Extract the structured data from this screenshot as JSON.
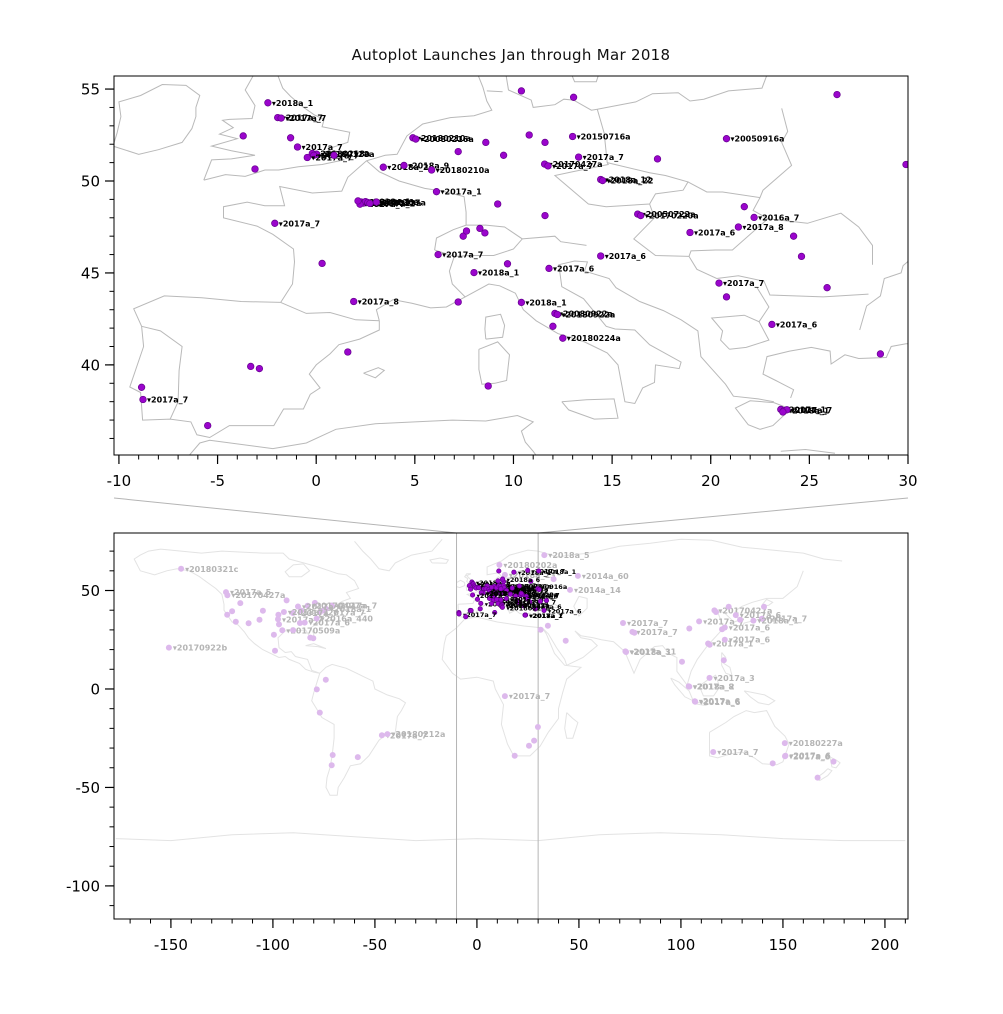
{
  "figure": {
    "title": "Autoplot Launches Jan through Mar 2018"
  },
  "colors": {
    "point_bright": "#9a05cc",
    "point_bright_edge": "#66008f",
    "point_faded": "#ddb9ec",
    "label_dark": "#000000",
    "label_gray": "#b5b5b5",
    "map_line_top": "#b9b9b9",
    "map_line_bottom": "#e3e3e3",
    "zoom_line": "#b4b4b4",
    "axis": "#000000"
  },
  "chart_data": [
    {
      "type": "scatter",
      "name": "europe-detail",
      "title": "Autoplot Launches Jan through Mar 2018",
      "xlim": [
        -10.25,
        30.0
      ],
      "ylim": [
        35.1,
        55.71
      ],
      "xticks": [
        -10,
        -5,
        0,
        5,
        10,
        15,
        20,
        25,
        30
      ],
      "yticks": [
        40,
        45,
        50,
        55
      ],
      "x_minor_step": 1,
      "y_minor_step": 1,
      "grid": false,
      "points": [
        [
          -2.45,
          54.25,
          "2018a_1"
        ],
        [
          -1.95,
          53.45,
          "2017a_7"
        ],
        [
          -1.78,
          53.42,
          "2017a_7"
        ],
        [
          -3.7,
          52.45,
          null
        ],
        [
          -1.3,
          52.35,
          null
        ],
        [
          -0.95,
          51.85,
          "2017a_7"
        ],
        [
          -0.2,
          51.5,
          "20180218a"
        ],
        [
          0.02,
          51.46,
          "20180128a"
        ],
        [
          -0.12,
          51.4,
          "2017a_7"
        ],
        [
          -0.45,
          51.28,
          "2017a_7"
        ],
        [
          0.9,
          51.4,
          null
        ],
        [
          -3.1,
          50.65,
          null
        ],
        [
          4.9,
          52.35,
          "20180210a"
        ],
        [
          5.05,
          52.28,
          "20080216a"
        ],
        [
          3.4,
          50.75,
          "2018a_2"
        ],
        [
          4.45,
          50.85,
          "2018a_9"
        ],
        [
          5.85,
          50.6,
          "20180210a"
        ],
        [
          6.1,
          49.42,
          "2017a_1"
        ],
        [
          8.6,
          52.1,
          null
        ],
        [
          7.2,
          51.6,
          null
        ],
        [
          9.5,
          51.4,
          null
        ],
        [
          10.8,
          52.5,
          null
        ],
        [
          11.6,
          52.1,
          null
        ],
        [
          13.0,
          52.42,
          "20150716a"
        ],
        [
          13.3,
          51.3,
          "2017a_7"
        ],
        [
          11.58,
          50.92,
          "20170427a"
        ],
        [
          11.75,
          50.82,
          "2017a_7"
        ],
        [
          14.42,
          50.08,
          "2018a_12"
        ],
        [
          14.52,
          50.02,
          "2018a_22"
        ],
        [
          17.3,
          51.2,
          null
        ],
        [
          20.8,
          52.3,
          "20050916a"
        ],
        [
          29.9,
          50.9,
          null
        ],
        [
          26.4,
          54.7,
          null
        ],
        [
          13.05,
          54.55,
          null
        ],
        [
          10.4,
          54.9,
          null
        ],
        [
          7.45,
          47.0,
          null
        ],
        [
          7.62,
          47.28,
          null
        ],
        [
          8.3,
          47.42,
          null
        ],
        [
          8.55,
          47.18,
          null
        ],
        [
          6.18,
          46.0,
          "2017a_7"
        ],
        [
          11.6,
          48.12,
          null
        ],
        [
          9.2,
          48.75,
          null
        ],
        [
          2.28,
          48.86,
          "20180126a"
        ],
        [
          2.4,
          48.8,
          "20180223a"
        ],
        [
          2.5,
          48.88,
          "2018a_1"
        ],
        [
          2.22,
          48.74,
          "2017a_7"
        ],
        [
          2.62,
          48.83,
          "20180117a"
        ],
        [
          2.72,
          48.78,
          "2017a_2"
        ],
        [
          3.05,
          48.86,
          null
        ],
        [
          2.12,
          48.92,
          null
        ],
        [
          -2.1,
          47.7,
          "2017a_7"
        ],
        [
          0.3,
          45.52,
          null
        ],
        [
          1.9,
          43.45,
          "2017a_8"
        ],
        [
          16.3,
          48.2,
          "20050722a"
        ],
        [
          16.45,
          48.12,
          "20170220a"
        ],
        [
          18.95,
          47.2,
          "2017a_6"
        ],
        [
          21.4,
          47.5,
          "2017a_8"
        ],
        [
          22.2,
          48.02,
          "2016a_7"
        ],
        [
          21.7,
          48.6,
          null
        ],
        [
          24.2,
          47.0,
          null
        ],
        [
          24.6,
          45.9,
          null
        ],
        [
          20.42,
          44.45,
          "2017a_7"
        ],
        [
          20.8,
          43.7,
          null
        ],
        [
          25.9,
          44.2,
          null
        ],
        [
          23.1,
          42.2,
          "2017a_6"
        ],
        [
          28.6,
          40.6,
          null
        ],
        [
          8.0,
          45.02,
          "2018a_1"
        ],
        [
          9.7,
          45.5,
          null
        ],
        [
          11.8,
          45.25,
          "2017a_6"
        ],
        [
          14.42,
          45.92,
          "2017a_6"
        ],
        [
          7.2,
          43.42,
          null
        ],
        [
          10.4,
          43.4,
          "2018a_1"
        ],
        [
          12.1,
          42.8,
          "20080922a"
        ],
        [
          12.22,
          42.74,
          "20180922a"
        ],
        [
          12.0,
          42.1,
          null
        ],
        [
          12.5,
          41.45,
          "20180224a"
        ],
        [
          8.72,
          38.85,
          null
        ],
        [
          -8.85,
          38.78,
          null
        ],
        [
          -8.78,
          38.12,
          "2017a_7"
        ],
        [
          -3.32,
          39.92,
          null
        ],
        [
          -2.88,
          39.8,
          null
        ],
        [
          1.6,
          40.7,
          null
        ],
        [
          -5.5,
          36.7,
          null
        ],
        [
          23.55,
          37.58,
          "2017a_1"
        ],
        [
          23.72,
          37.52,
          "2018a_1"
        ],
        [
          23.86,
          37.56,
          "2017a_7"
        ],
        [
          23.66,
          37.44,
          null
        ]
      ]
    },
    {
      "type": "scatter",
      "name": "world-context",
      "xlim": [
        -177.9,
        211.3
      ],
      "ylim": [
        -116.8,
        79.2
      ],
      "xticks": [
        -150,
        -100,
        -50,
        0,
        50,
        100,
        150,
        200
      ],
      "yticks": [
        -100,
        -50,
        0,
        50
      ],
      "x_minor_step": 10,
      "y_minor_step": 10,
      "grid": false,
      "zoom_region_lon": [
        -10,
        30
      ],
      "points": [
        [
          -145,
          61,
          "20180321c"
        ],
        [
          -151,
          21,
          "20170922b"
        ],
        [
          -123,
          49.2,
          "2017a_5"
        ],
        [
          -122.3,
          47.6,
          "20170427a"
        ],
        [
          -122.4,
          37.7,
          null
        ],
        [
          -118.2,
          34.1,
          null
        ],
        [
          -111.9,
          33.4,
          null
        ],
        [
          -120,
          39.5,
          null
        ],
        [
          -116,
          43.6,
          null
        ],
        [
          -104.9,
          39.7,
          null
        ],
        [
          -106.6,
          35.1,
          null
        ],
        [
          -99,
          19.4,
          null
        ],
        [
          -97.5,
          35.4,
          "2017a_7"
        ],
        [
          -97,
          32.8,
          null
        ],
        [
          -95.4,
          29.8,
          "20170509a"
        ],
        [
          -90.1,
          29.9,
          null
        ],
        [
          -86.8,
          33.5,
          null
        ],
        [
          -84.4,
          33.7,
          "2017a_6"
        ],
        [
          -81.7,
          26.1,
          null
        ],
        [
          -80.2,
          25.8,
          null
        ],
        [
          -78.6,
          35.8,
          "2016a_440"
        ],
        [
          -77,
          38.9,
          "2017a_7"
        ],
        [
          -75.2,
          39.9,
          null
        ],
        [
          -74,
          40.7,
          "2018a_1"
        ],
        [
          -71.1,
          42.4,
          "2017a_7"
        ],
        [
          -79.4,
          43.7,
          null
        ],
        [
          -83,
          42.3,
          "20170427a"
        ],
        [
          -87.7,
          41.9,
          "2017a_6"
        ],
        [
          -93.3,
          45,
          null
        ],
        [
          -90.2,
          38.6,
          "2017a_7"
        ],
        [
          -86.2,
          39.8,
          null
        ],
        [
          -94.6,
          39.1,
          "2018a_1"
        ],
        [
          -97.3,
          37.7,
          null
        ],
        [
          -99.5,
          27.5,
          null
        ],
        [
          -74.1,
          4.7,
          null
        ],
        [
          -78.5,
          -0.2,
          null
        ],
        [
          -77,
          -12,
          null
        ],
        [
          -70.7,
          -33.5,
          null
        ],
        [
          -71.2,
          -38.7,
          null
        ],
        [
          -58.4,
          -34.6,
          null
        ],
        [
          -46.6,
          -23.5,
          "2017a_7"
        ],
        [
          -43.9,
          -22.9,
          "20180212a"
        ],
        [
          13.7,
          -3.6,
          "2017a_7"
        ],
        [
          28,
          -26.2,
          null
        ],
        [
          25.5,
          -28.8,
          null
        ],
        [
          29.9,
          -19.3,
          null
        ],
        [
          18.5,
          -33.9,
          null
        ],
        [
          31.2,
          30.1,
          null
        ],
        [
          34.8,
          32.1,
          null
        ],
        [
          43.5,
          24.5,
          null
        ],
        [
          11,
          63,
          "20180202a"
        ],
        [
          13.7,
          57.9,
          "2018a_13"
        ],
        [
          33,
          68,
          "2018a_5"
        ],
        [
          49.5,
          57.4,
          "2014a_60"
        ],
        [
          45.6,
          50.3,
          "2014a_14"
        ],
        [
          37.6,
          55.8,
          null
        ],
        [
          71.6,
          33.5,
          "2017a_7"
        ],
        [
          76.2,
          29,
          "2017a_7"
        ],
        [
          72.8,
          19.1,
          "2017a_31"
        ],
        [
          73.1,
          18.8,
          "2018a_1"
        ],
        [
          77.2,
          28.6,
          null
        ],
        [
          116.4,
          39.9,
          "20170427a"
        ],
        [
          117.2,
          39.1,
          null
        ],
        [
          121.5,
          31.2,
          "2017a_6"
        ],
        [
          120.2,
          30.3,
          null
        ],
        [
          113.3,
          23.1,
          "2017a_1"
        ],
        [
          114.1,
          22.5,
          null
        ],
        [
          108.9,
          34.3,
          "2017a_7"
        ],
        [
          104.1,
          30.7,
          null
        ],
        [
          123.4,
          41.8,
          null
        ],
        [
          126.9,
          37.5,
          "2017a_6"
        ],
        [
          129,
          35.2,
          null
        ],
        [
          139.7,
          35.7,
          "2017a_7"
        ],
        [
          135.5,
          34.7,
          "2018a_1"
        ],
        [
          140.7,
          41.8,
          null
        ],
        [
          121.5,
          25,
          "2017a_6"
        ],
        [
          100.5,
          13.8,
          null
        ],
        [
          121,
          14.6,
          null
        ],
        [
          103.8,
          1.35,
          "2017a_8"
        ],
        [
          104.1,
          1.2,
          "2018a_2"
        ],
        [
          114,
          5.6,
          "2017a_3"
        ],
        [
          106.8,
          -6.2,
          "2017a_6"
        ],
        [
          107,
          -6.5,
          "2017a_6"
        ],
        [
          150.9,
          -27.5,
          "20180227a"
        ],
        [
          115.8,
          -32,
          "2017a_7"
        ],
        [
          151.2,
          -33.9,
          "2017a_6"
        ],
        [
          151,
          -34.2,
          "2017a_6"
        ],
        [
          145,
          -37.8,
          null
        ],
        [
          174.8,
          -36.9,
          null
        ],
        [
          167,
          -45,
          null
        ]
      ],
      "bright_extra": [
        [
          18.1,
          59.3,
          "2018a_1"
        ],
        [
          12.6,
          55.8,
          "2018a_6"
        ],
        [
          24.9,
          60.2,
          "2017a_7"
        ],
        [
          10.7,
          59.9,
          null
        ],
        [
          30.5,
          50.45,
          null
        ],
        [
          32.9,
          39.9,
          "2017a_6"
        ],
        [
          31.1,
          44.5,
          null
        ],
        [
          34.1,
          44.9,
          null
        ],
        [
          30.3,
          59.9,
          "2018a_1"
        ]
      ]
    }
  ]
}
